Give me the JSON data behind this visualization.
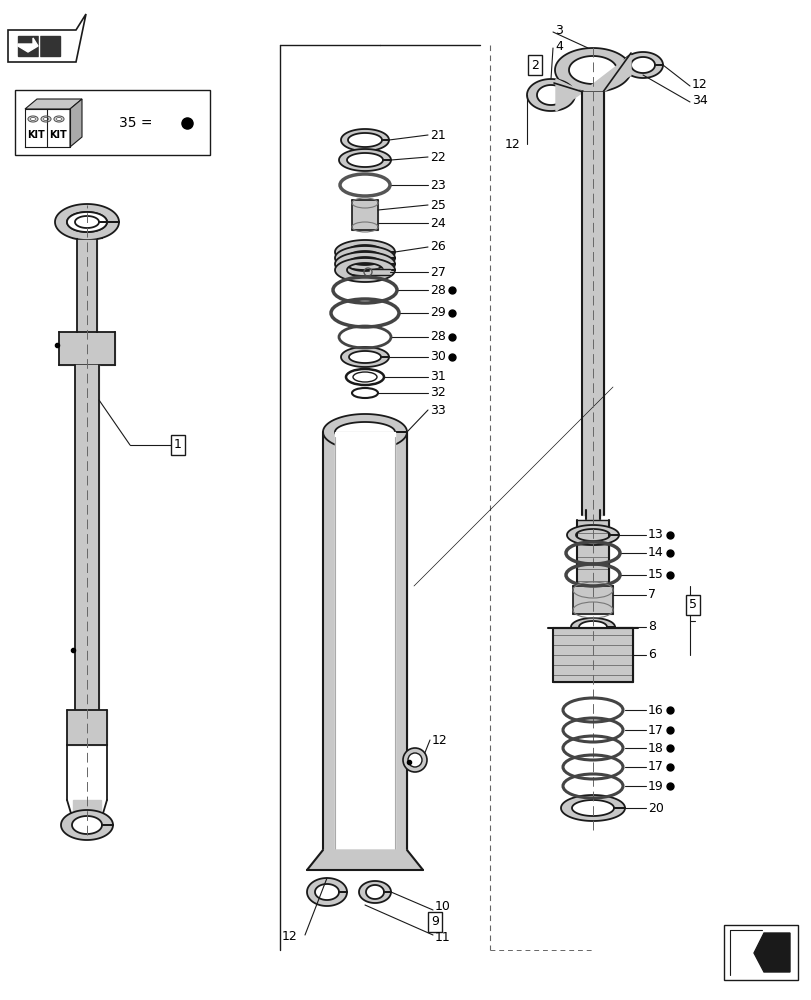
{
  "bg_color": "#ffffff",
  "line_color": "#1a1a1a",
  "gray_fill": "#c8c8c8",
  "dark_gray": "#888888",
  "mid_gray": "#aaaaaa"
}
